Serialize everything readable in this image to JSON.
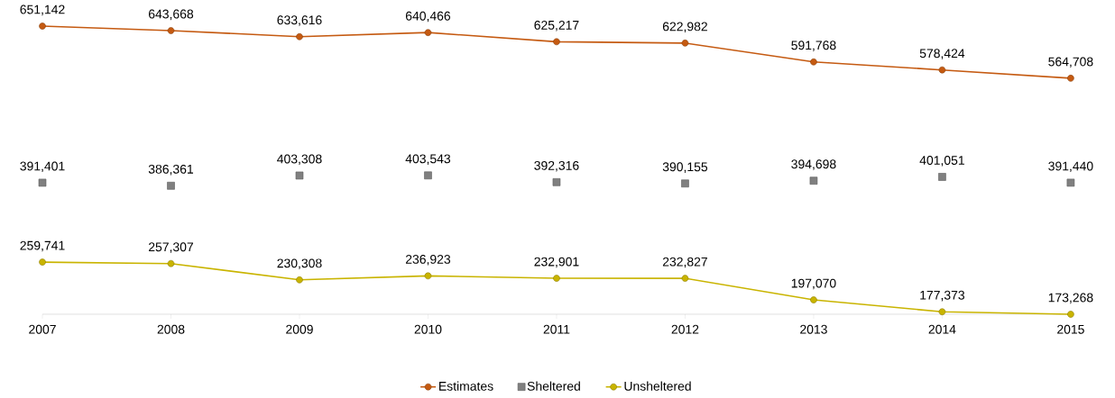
{
  "chart_data": {
    "type": "line",
    "categories": [
      "2007",
      "2008",
      "2009",
      "2010",
      "2011",
      "2012",
      "2013",
      "2014",
      "2015"
    ],
    "series": [
      {
        "name": "Estimates",
        "color": "#c55a11",
        "marker": "circle",
        "values": [
          651142,
          643668,
          633616,
          640466,
          625217,
          622982,
          591768,
          578424,
          564708
        ],
        "value_labels": [
          "651,142",
          "643,668",
          "633,616",
          "640,466",
          "625,217",
          "622,982",
          "591,768",
          "578,424",
          "564,708"
        ]
      },
      {
        "name": "Sheltered",
        "type": "scatter",
        "color": "#808080",
        "marker": "square",
        "values": [
          391401,
          386361,
          403308,
          403543,
          392316,
          390155,
          394698,
          401051,
          391440
        ],
        "value_labels": [
          "391,401",
          "386,361",
          "403,308",
          "403,543",
          "392,316",
          "390,155",
          "394,698",
          "401,051",
          "391,440"
        ]
      },
      {
        "name": "Unsheltered",
        "color": "#c9b400",
        "marker": "circle",
        "values": [
          259741,
          257307,
          230308,
          236923,
          232901,
          232827,
          197070,
          177373,
          173268
        ],
        "value_labels": [
          "259,741",
          "257,307",
          "230,308",
          "236,923",
          "232,901",
          "232,827",
          "197,070",
          "177,373",
          "173,268"
        ]
      }
    ],
    "grid": false,
    "legend": "bottom"
  }
}
